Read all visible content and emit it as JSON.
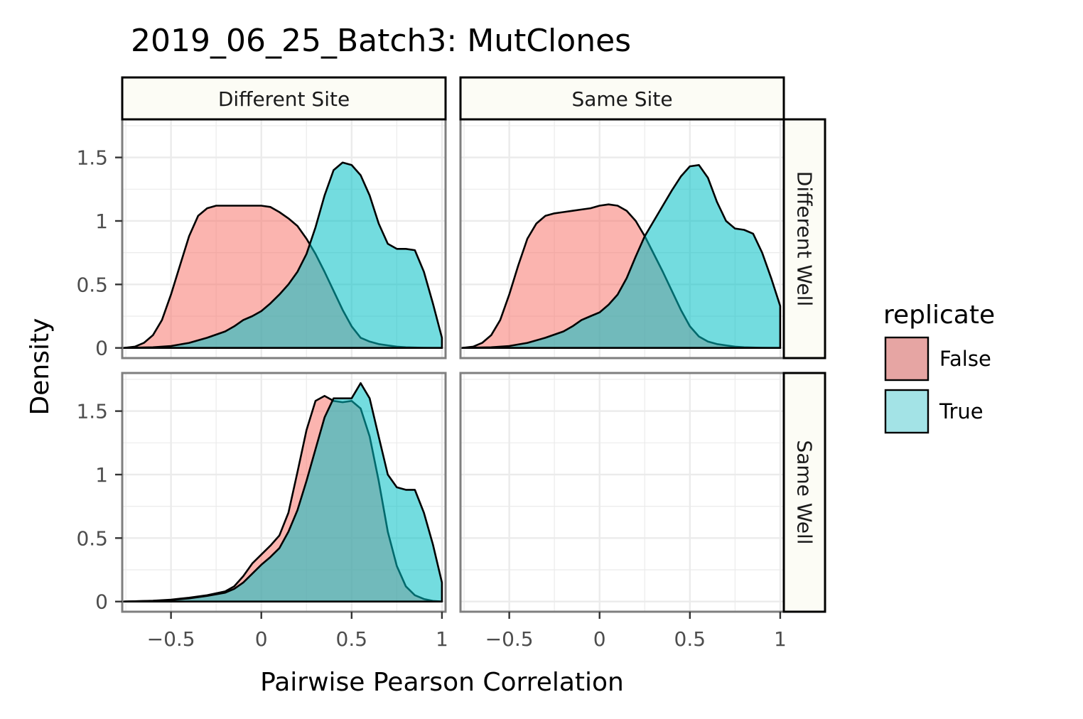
{
  "chart_data": {
    "type": "area",
    "chart_kind": "faceted density plot",
    "title": "2019_06_25_Batch3: MutClones",
    "xlabel": "Pairwise Pearson Correlation",
    "ylabel": "Density",
    "xlim": [
      -0.77,
      1.02
    ],
    "ylim": [
      -0.08,
      1.8
    ],
    "x_ticks": [
      -0.5,
      0,
      0.5,
      1
    ],
    "x_tick_labels": [
      "−0.5",
      "0",
      "0.5",
      "1"
    ],
    "y_ticks": [
      0,
      0.5,
      1,
      1.5
    ],
    "y_tick_labels": [
      "0",
      "0.5",
      "1",
      "1.5"
    ],
    "grid": true,
    "col_facets": [
      "Different Site",
      "Same Site"
    ],
    "row_facets": [
      "Different Well",
      "Same Well"
    ],
    "legend": {
      "title": "replicate",
      "position": "right",
      "entries": [
        {
          "label": "False",
          "color": "#e6a5a3"
        },
        {
          "label": "True",
          "color": "#a3e3e6"
        }
      ]
    },
    "series_colors": {
      "False": "#f8766d",
      "True": "#00bfc4"
    },
    "fill_opacity": 0.55,
    "panels": [
      {
        "row": "Different Well",
        "col": "Different Site",
        "series": [
          {
            "name": "False",
            "x": [
              -0.76,
              -0.7,
              -0.65,
              -0.6,
              -0.55,
              -0.5,
              -0.45,
              -0.4,
              -0.35,
              -0.3,
              -0.25,
              -0.2,
              -0.15,
              -0.1,
              -0.05,
              0,
              0.05,
              0.1,
              0.15,
              0.2,
              0.25,
              0.3,
              0.35,
              0.4,
              0.45,
              0.5,
              0.55,
              0.6,
              0.65,
              0.7,
              0.75,
              0.8,
              0.85,
              0.9,
              0.95,
              1.0
            ],
            "y": [
              0,
              0.01,
              0.04,
              0.1,
              0.22,
              0.42,
              0.65,
              0.88,
              1.04,
              1.1,
              1.12,
              1.12,
              1.12,
              1.12,
              1.12,
              1.12,
              1.11,
              1.07,
              1.02,
              0.96,
              0.86,
              0.74,
              0.6,
              0.45,
              0.3,
              0.17,
              0.08,
              0.05,
              0.03,
              0.02,
              0.01,
              0.005,
              0.003,
              0.001,
              0,
              0
            ]
          },
          {
            "name": "True",
            "x": [
              -0.76,
              -0.7,
              -0.6,
              -0.5,
              -0.4,
              -0.3,
              -0.2,
              -0.15,
              -0.1,
              -0.05,
              0,
              0.05,
              0.1,
              0.15,
              0.2,
              0.25,
              0.3,
              0.35,
              0.4,
              0.45,
              0.5,
              0.55,
              0.6,
              0.65,
              0.7,
              0.75,
              0.8,
              0.85,
              0.9,
              0.95,
              1.0,
              1.0
            ],
            "y": [
              0,
              0.002,
              0.005,
              0.015,
              0.04,
              0.08,
              0.13,
              0.17,
              0.22,
              0.25,
              0.29,
              0.35,
              0.42,
              0.5,
              0.6,
              0.74,
              0.95,
              1.2,
              1.4,
              1.46,
              1.44,
              1.36,
              1.2,
              0.98,
              0.82,
              0.78,
              0.78,
              0.77,
              0.6,
              0.35,
              0.08,
              0
            ]
          }
        ]
      },
      {
        "row": "Different Well",
        "col": "Same Site",
        "series": [
          {
            "name": "False",
            "x": [
              -0.76,
              -0.7,
              -0.65,
              -0.6,
              -0.55,
              -0.5,
              -0.45,
              -0.4,
              -0.35,
              -0.3,
              -0.25,
              -0.2,
              -0.15,
              -0.1,
              -0.05,
              0,
              0.05,
              0.1,
              0.15,
              0.2,
              0.25,
              0.3,
              0.35,
              0.4,
              0.45,
              0.5,
              0.55,
              0.6,
              0.65,
              0.7,
              0.75,
              0.8,
              0.85,
              0.9,
              0.95,
              1.0
            ],
            "y": [
              0,
              0.01,
              0.04,
              0.1,
              0.22,
              0.42,
              0.65,
              0.86,
              0.98,
              1.04,
              1.06,
              1.07,
              1.08,
              1.09,
              1.1,
              1.12,
              1.13,
              1.12,
              1.08,
              1.0,
              0.88,
              0.74,
              0.6,
              0.45,
              0.3,
              0.17,
              0.09,
              0.05,
              0.03,
              0.02,
              0.01,
              0.005,
              0.003,
              0.001,
              0,
              0
            ]
          },
          {
            "name": "True",
            "x": [
              -0.76,
              -0.7,
              -0.6,
              -0.5,
              -0.4,
              -0.3,
              -0.2,
              -0.15,
              -0.1,
              -0.05,
              0,
              0.05,
              0.1,
              0.15,
              0.2,
              0.25,
              0.3,
              0.35,
              0.4,
              0.45,
              0.5,
              0.55,
              0.6,
              0.65,
              0.7,
              0.75,
              0.8,
              0.85,
              0.9,
              0.95,
              1.0,
              1.0
            ],
            "y": [
              0,
              0.002,
              0.005,
              0.015,
              0.04,
              0.08,
              0.13,
              0.17,
              0.22,
              0.25,
              0.28,
              0.34,
              0.42,
              0.55,
              0.72,
              0.88,
              1.0,
              1.12,
              1.24,
              1.35,
              1.43,
              1.44,
              1.34,
              1.15,
              1.0,
              0.94,
              0.93,
              0.9,
              0.75,
              0.55,
              0.33,
              0
            ]
          }
        ]
      },
      {
        "row": "Same Well",
        "col": "Different Site",
        "series": [
          {
            "name": "False",
            "x": [
              -0.76,
              -0.7,
              -0.6,
              -0.5,
              -0.4,
              -0.3,
              -0.2,
              -0.15,
              -0.1,
              -0.05,
              0,
              0.05,
              0.1,
              0.15,
              0.2,
              0.25,
              0.3,
              0.35,
              0.4,
              0.45,
              0.5,
              0.55,
              0.6,
              0.65,
              0.7,
              0.75,
              0.8,
              0.85,
              0.9,
              0.95,
              1.0
            ],
            "y": [
              0,
              0.002,
              0.006,
              0.015,
              0.03,
              0.05,
              0.08,
              0.12,
              0.2,
              0.3,
              0.37,
              0.44,
              0.52,
              0.7,
              1.02,
              1.35,
              1.58,
              1.62,
              1.58,
              1.57,
              1.58,
              1.52,
              1.3,
              0.95,
              0.55,
              0.28,
              0.12,
              0.05,
              0.02,
              0.005,
              0
            ]
          },
          {
            "name": "True",
            "x": [
              -0.76,
              -0.7,
              -0.6,
              -0.5,
              -0.4,
              -0.3,
              -0.2,
              -0.15,
              -0.1,
              -0.05,
              0,
              0.05,
              0.1,
              0.15,
              0.2,
              0.25,
              0.3,
              0.35,
              0.4,
              0.45,
              0.5,
              0.55,
              0.6,
              0.65,
              0.7,
              0.75,
              0.8,
              0.85,
              0.9,
              0.95,
              1.0,
              1.0
            ],
            "y": [
              0,
              0.002,
              0.005,
              0.012,
              0.025,
              0.045,
              0.07,
              0.1,
              0.15,
              0.22,
              0.29,
              0.35,
              0.42,
              0.55,
              0.72,
              0.95,
              1.2,
              1.45,
              1.6,
              1.6,
              1.6,
              1.72,
              1.6,
              1.3,
              1.0,
              0.9,
              0.88,
              0.88,
              0.7,
              0.45,
              0.15,
              0
            ]
          }
        ]
      },
      {
        "row": "Same Well",
        "col": "Same Site",
        "series": []
      }
    ]
  }
}
